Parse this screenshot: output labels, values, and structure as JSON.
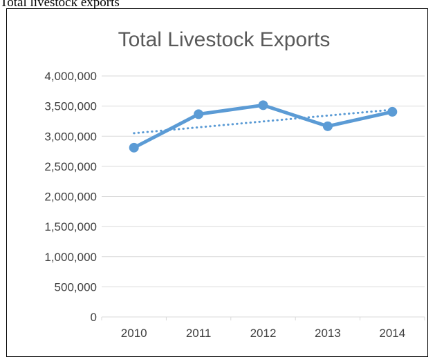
{
  "caption": "Total livestock exports",
  "colors": {
    "series": "#5b9bd5",
    "grid": "#d9d9d9",
    "text": "#404040",
    "title": "#595959"
  },
  "chart_data": {
    "type": "line",
    "title": "Total Livestock Exports",
    "xlabel": "",
    "ylabel": "",
    "categories": [
      "2010",
      "2011",
      "2012",
      "2013",
      "2014"
    ],
    "series": [
      {
        "values": [
          2810000,
          3365000,
          3515000,
          3165000,
          3405000
        ],
        "marker": "circle"
      }
    ],
    "trendline": {
      "type": "linear",
      "style": "dotted",
      "start": 3050000,
      "end": 3440000
    },
    "ylim": [
      0,
      4000000
    ],
    "yticks": [
      0,
      500000,
      1000000,
      1500000,
      2000000,
      2500000,
      3000000,
      3500000,
      4000000
    ],
    "ytick_labels": [
      "0",
      "500,000",
      "1,000,000",
      "1,500,000",
      "2,000,000",
      "2,500,000",
      "3,000,000",
      "3,500,000",
      "4,000,000"
    ],
    "grid": true,
    "legend": "none"
  }
}
